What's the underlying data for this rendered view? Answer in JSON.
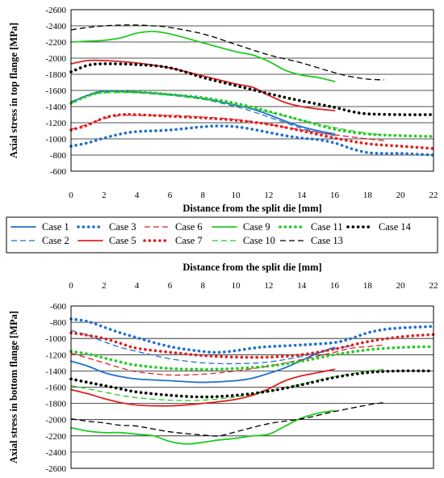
{
  "chart_data": [
    {
      "type": "line",
      "xlabel": "Distance from the split die [mm]",
      "ylabel": "Axial stress in top flange [MPa]",
      "xlim": [
        0,
        22
      ],
      "ylim": [
        -2600,
        -600
      ],
      "y_axis_reversed": true,
      "xticks": [
        "0",
        "2",
        "4",
        "6",
        "8",
        "10",
        "12",
        "14",
        "16",
        "18",
        "20",
        "22"
      ],
      "yticks": [
        "-2600",
        "-2400",
        "-2200",
        "-2000",
        "-1800",
        "-1600",
        "-1400",
        "-1200",
        "-1000",
        "-800",
        "-600"
      ],
      "grid": "horizontal",
      "series": [
        {
          "name": "Case 1",
          "x": [
            0,
            1,
            2,
            4,
            6,
            8,
            10,
            11,
            12,
            13,
            14,
            15,
            16
          ],
          "y": [
            -1450,
            -1540,
            -1590,
            -1580,
            -1550,
            -1500,
            -1420,
            -1370,
            -1300,
            -1220,
            -1150,
            -1100,
            -1060
          ]
        },
        {
          "name": "Case 2",
          "x": [
            0,
            1,
            2,
            4,
            6,
            8,
            10,
            11,
            12,
            13,
            14,
            15,
            16
          ],
          "y": [
            -1460,
            -1540,
            -1580,
            -1570,
            -1540,
            -1490,
            -1400,
            -1340,
            -1270,
            -1200,
            -1130,
            -1080,
            -1040
          ]
        },
        {
          "name": "Case 3",
          "x": [
            0,
            1,
            2,
            3,
            4,
            6,
            8,
            9,
            10,
            11,
            12,
            13,
            14,
            15,
            16,
            17,
            18,
            19,
            20,
            21,
            22
          ],
          "y": [
            -910,
            -950,
            -1010,
            -1060,
            -1090,
            -1110,
            -1150,
            -1160,
            -1150,
            -1120,
            -1080,
            -1040,
            -1010,
            -990,
            -950,
            -880,
            -830,
            -820,
            -820,
            -810,
            -800
          ]
        },
        {
          "name": "Case 5",
          "x": [
            0,
            1,
            2,
            4,
            6,
            8,
            10,
            11,
            12,
            13,
            14,
            15,
            16
          ],
          "y": [
            -1930,
            -1970,
            -1970,
            -1940,
            -1880,
            -1780,
            -1680,
            -1640,
            -1540,
            -1450,
            -1400,
            -1370,
            -1350
          ]
        },
        {
          "name": "Case 6",
          "x": [
            0,
            1,
            2,
            3,
            4,
            6,
            8,
            10,
            12,
            14,
            16,
            18,
            19
          ],
          "y": [
            -1120,
            -1180,
            -1250,
            -1290,
            -1290,
            -1290,
            -1270,
            -1240,
            -1180,
            -1110,
            -1050,
            -1000,
            -980
          ]
        },
        {
          "name": "Case 7",
          "x": [
            0,
            1,
            2,
            3,
            4,
            6,
            8,
            10,
            12,
            14,
            16,
            18,
            20,
            22
          ],
          "y": [
            -1110,
            -1170,
            -1260,
            -1300,
            -1300,
            -1280,
            -1260,
            -1230,
            -1180,
            -1100,
            -1010,
            -940,
            -910,
            -880
          ]
        },
        {
          "name": "Case 9",
          "x": [
            0,
            1,
            2,
            3,
            4,
            5,
            6,
            8,
            10,
            11,
            12,
            13,
            14,
            15,
            16
          ],
          "y": [
            -2200,
            -2210,
            -2220,
            -2250,
            -2310,
            -2330,
            -2300,
            -2190,
            -2080,
            -2040,
            -1960,
            -1850,
            -1790,
            -1760,
            -1710
          ]
        },
        {
          "name": "Case 10",
          "x": [
            0,
            1,
            2,
            4,
            6,
            8,
            10,
            12,
            14,
            16,
            18,
            19
          ],
          "y": [
            -1440,
            -1530,
            -1570,
            -1570,
            -1540,
            -1490,
            -1420,
            -1330,
            -1230,
            -1140,
            -1070,
            -1050
          ]
        },
        {
          "name": "Case 11",
          "x": [
            0,
            1,
            2,
            4,
            6,
            8,
            10,
            12,
            14,
            16,
            18,
            20,
            22
          ],
          "y": [
            -1440,
            -1530,
            -1580,
            -1580,
            -1550,
            -1510,
            -1440,
            -1340,
            -1230,
            -1120,
            -1060,
            -1040,
            -1030
          ]
        },
        {
          "name": "Case 13",
          "x": [
            0,
            1,
            2,
            3,
            4,
            5,
            6,
            8,
            10,
            12,
            14,
            16,
            17,
            18,
            19
          ],
          "y": [
            -2350,
            -2380,
            -2400,
            -2410,
            -2410,
            -2400,
            -2380,
            -2300,
            -2170,
            -2040,
            -1940,
            -1820,
            -1770,
            -1740,
            -1730
          ]
        },
        {
          "name": "Case 14",
          "x": [
            0,
            1,
            2,
            4,
            6,
            8,
            10,
            12,
            14,
            16,
            17,
            18,
            20,
            22
          ],
          "y": [
            -1830,
            -1910,
            -1930,
            -1920,
            -1880,
            -1760,
            -1660,
            -1560,
            -1470,
            -1390,
            -1340,
            -1310,
            -1300,
            -1300
          ]
        }
      ]
    },
    {
      "type": "line",
      "xlabel": "Distance from the split die [mm]",
      "ylabel": "Axial stress in bottom flange [MPa]",
      "xlim": [
        0,
        22
      ],
      "ylim": [
        -2600,
        -600
      ],
      "y_axis_reversed": false,
      "xticks": [
        "0",
        "2",
        "4",
        "6",
        "8",
        "10",
        "12",
        "14",
        "16",
        "18",
        "20",
        "22"
      ],
      "yticks": [
        "-600",
        "-800",
        "-1000",
        "-1200",
        "-1400",
        "-1600",
        "-1800",
        "-2000",
        "-2200",
        "-2400",
        "-2600"
      ],
      "grid": "horizontal",
      "series": [
        {
          "name": "Case 1",
          "x": [
            0,
            1,
            2,
            3,
            4,
            6,
            8,
            10,
            11,
            12,
            13,
            14,
            15,
            16
          ],
          "y": [
            -1280,
            -1340,
            -1420,
            -1470,
            -1500,
            -1520,
            -1540,
            -1520,
            -1490,
            -1430,
            -1360,
            -1270,
            -1180,
            -1110
          ]
        },
        {
          "name": "Case 2",
          "x": [
            0,
            1,
            2,
            3,
            4,
            6,
            8,
            10,
            12,
            14,
            16,
            17
          ],
          "y": [
            -900,
            -960,
            -1040,
            -1110,
            -1160,
            -1250,
            -1300,
            -1310,
            -1290,
            -1220,
            -1130,
            -1090
          ]
        },
        {
          "name": "Case 3",
          "x": [
            0,
            1,
            2,
            3,
            4,
            6,
            8,
            9,
            10,
            11,
            12,
            14,
            16,
            17,
            18,
            19,
            20,
            21,
            22
          ],
          "y": [
            -760,
            -790,
            -860,
            -930,
            -990,
            -1100,
            -1160,
            -1170,
            -1150,
            -1120,
            -1100,
            -1080,
            -1050,
            -1000,
            -930,
            -890,
            -870,
            -860,
            -850
          ]
        },
        {
          "name": "Case 5",
          "x": [
            0,
            1,
            2,
            3,
            4,
            6,
            8,
            10,
            11,
            12,
            13,
            14,
            15,
            16
          ],
          "y": [
            -1630,
            -1680,
            -1740,
            -1790,
            -1820,
            -1830,
            -1800,
            -1750,
            -1700,
            -1620,
            -1520,
            -1460,
            -1420,
            -1380
          ]
        },
        {
          "name": "Case 6",
          "x": [
            0,
            1,
            2,
            3,
            4,
            6,
            8,
            10,
            12,
            14,
            16,
            17,
            18,
            19
          ],
          "y": [
            -1180,
            -1240,
            -1300,
            -1360,
            -1410,
            -1450,
            -1440,
            -1400,
            -1340,
            -1260,
            -1170,
            -1120,
            -1100,
            -1080
          ]
        },
        {
          "name": "Case 7",
          "x": [
            0,
            1,
            2,
            3,
            4,
            6,
            8,
            10,
            12,
            14,
            16,
            18,
            20,
            22
          ],
          "y": [
            -930,
            -960,
            -1000,
            -1060,
            -1120,
            -1170,
            -1210,
            -1230,
            -1230,
            -1200,
            -1130,
            -1040,
            -980,
            -950
          ]
        },
        {
          "name": "Case 9",
          "x": [
            0,
            1,
            2,
            3,
            4,
            5,
            6,
            7,
            8,
            9,
            10,
            11,
            12,
            13,
            14,
            15,
            16
          ],
          "y": [
            -2100,
            -2140,
            -2160,
            -2160,
            -2180,
            -2200,
            -2270,
            -2300,
            -2280,
            -2250,
            -2230,
            -2200,
            -2180,
            -2080,
            -1980,
            -1920,
            -1890
          ]
        },
        {
          "name": "Case 10",
          "x": [
            0,
            1,
            2,
            3,
            4,
            6,
            8,
            10,
            12,
            14,
            16,
            18,
            19
          ],
          "y": [
            -1580,
            -1620,
            -1660,
            -1700,
            -1730,
            -1760,
            -1760,
            -1720,
            -1650,
            -1560,
            -1470,
            -1400,
            -1380
          ]
        },
        {
          "name": "Case 11",
          "x": [
            0,
            1,
            2,
            3,
            4,
            6,
            8,
            10,
            12,
            14,
            16,
            18,
            20,
            22
          ],
          "y": [
            -1160,
            -1190,
            -1240,
            -1290,
            -1330,
            -1370,
            -1380,
            -1370,
            -1340,
            -1280,
            -1200,
            -1140,
            -1110,
            -1100
          ]
        },
        {
          "name": "Case 13",
          "x": [
            0,
            1,
            2,
            3,
            4,
            6,
            8,
            9,
            10,
            12,
            14,
            16,
            18,
            19
          ],
          "y": [
            -1990,
            -2020,
            -2040,
            -2070,
            -2080,
            -2150,
            -2190,
            -2200,
            -2150,
            -2050,
            -1990,
            -1900,
            -1820,
            -1790
          ]
        },
        {
          "name": "Case 14",
          "x": [
            0,
            1,
            2,
            3,
            4,
            6,
            8,
            10,
            12,
            14,
            16,
            18,
            20,
            22
          ],
          "y": [
            -1500,
            -1540,
            -1580,
            -1620,
            -1660,
            -1700,
            -1720,
            -1700,
            -1650,
            -1570,
            -1480,
            -1420,
            -1400,
            -1400
          ]
        }
      ]
    }
  ],
  "legend": {
    "placement": "between panels",
    "entries": [
      {
        "label": "Case 1",
        "color": "#1f6fd1",
        "style": "solid"
      },
      {
        "label": "Case 3",
        "color": "#1f6fd1",
        "style": "dotted"
      },
      {
        "label": "Case 6",
        "color": "#e02020",
        "style": "dashed"
      },
      {
        "label": "Case 9",
        "color": "#22cc22",
        "style": "solid"
      },
      {
        "label": "Case 11",
        "color": "#22cc22",
        "style": "dotted"
      },
      {
        "label": "Case 14",
        "color": "#000000",
        "style": "dotted"
      },
      {
        "label": "Case 2",
        "color": "#1f6fd1",
        "style": "dashed"
      },
      {
        "label": "Case 5",
        "color": "#e02020",
        "style": "solid"
      },
      {
        "label": "Case 7",
        "color": "#e02020",
        "style": "dotted"
      },
      {
        "label": "Case 10",
        "color": "#22cc22",
        "style": "dashed"
      },
      {
        "label": "Case 13",
        "color": "#000000",
        "style": "dashed"
      }
    ]
  }
}
